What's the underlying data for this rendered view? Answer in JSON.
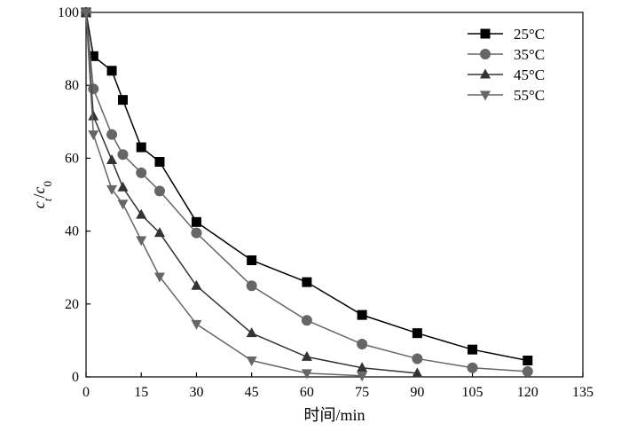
{
  "chart_data": {
    "type": "line",
    "xlabel": "时间/min",
    "ylabel": {
      "main": "c",
      "sub1": "t",
      "slash": "/",
      "main2": "c",
      "sub2": "0"
    },
    "xlim": [
      0,
      135
    ],
    "ylim": [
      0,
      100
    ],
    "xticks": [
      0,
      15,
      30,
      45,
      60,
      75,
      90,
      105,
      120,
      135
    ],
    "yticks": [
      0,
      20,
      40,
      60,
      80,
      100
    ],
    "grid": false,
    "legend_position": "top-right",
    "series": [
      {
        "name": "25°C",
        "marker": "square",
        "color": "#000000",
        "x": [
          0,
          2,
          7,
          10,
          15,
          20,
          30,
          45,
          60,
          75,
          90,
          105,
          120
        ],
        "y": [
          100,
          88,
          84,
          76,
          63,
          59,
          42.5,
          32,
          26,
          17,
          12,
          7.5,
          4.5
        ]
      },
      {
        "name": "35°C",
        "marker": "circle",
        "color": "#666666",
        "x": [
          0,
          2,
          7,
          10,
          15,
          20,
          30,
          45,
          60,
          75,
          90,
          105,
          120
        ],
        "y": [
          100,
          79,
          66.5,
          61,
          56,
          51,
          39.5,
          25,
          15.5,
          9,
          5,
          2.5,
          1.5
        ]
      },
      {
        "name": "45°C",
        "marker": "triangle-up",
        "color": "#333333",
        "x": [
          0,
          2,
          7,
          10,
          15,
          20,
          30,
          45,
          60,
          75,
          90
        ],
        "y": [
          100,
          71.5,
          59.5,
          52,
          44.5,
          39.5,
          25,
          12,
          5.5,
          2.5,
          1
        ]
      },
      {
        "name": "55°C",
        "marker": "triangle-down",
        "color": "#666666",
        "x": [
          0,
          2,
          7,
          10,
          15,
          20,
          30,
          45,
          60,
          75
        ],
        "y": [
          100,
          66.5,
          51.5,
          47.5,
          37.5,
          27.5,
          14.5,
          4.5,
          1,
          0.3
        ]
      }
    ]
  }
}
